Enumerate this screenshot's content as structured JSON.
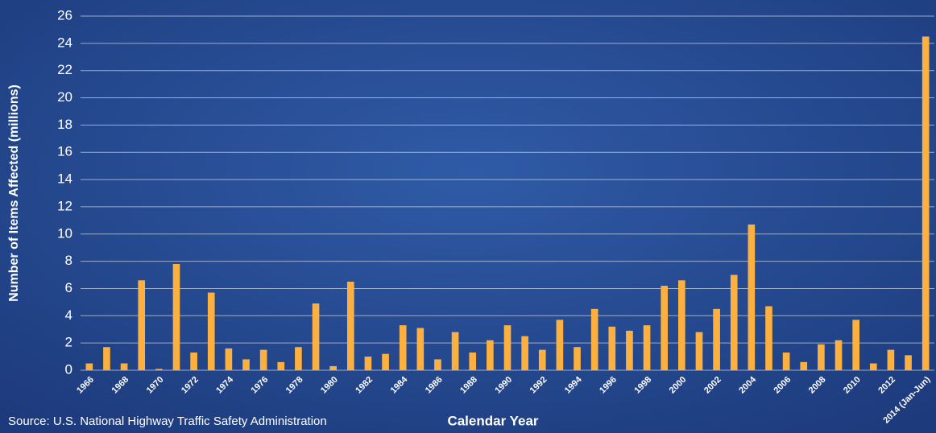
{
  "chart_data": {
    "type": "bar",
    "y_label": "Number of Items Affected (millions)",
    "x_label": "Calendar Year",
    "source": "Source: U.S. National Highway Traffic Safety Administration",
    "categories": [
      "1966",
      null,
      "1968",
      null,
      "1970",
      null,
      "1972",
      null,
      "1974",
      null,
      "1976",
      null,
      "1978",
      null,
      "1980",
      null,
      "1982",
      null,
      "1984",
      null,
      "1986",
      null,
      "1988",
      null,
      "1990",
      null,
      "1992",
      null,
      "1994",
      null,
      "1996",
      null,
      "1998",
      null,
      "2000",
      null,
      "2002",
      null,
      "2004",
      null,
      "2006",
      null,
      "2008",
      null,
      "2010",
      null,
      "2012",
      null,
      "2014 (Jan-Jun)"
    ],
    "values": [
      0.5,
      1.7,
      0.5,
      6.6,
      0.1,
      7.8,
      1.3,
      5.7,
      1.6,
      0.8,
      1.5,
      0.6,
      1.7,
      4.9,
      0.3,
      6.5,
      1.0,
      1.2,
      3.3,
      3.1,
      0.8,
      2.8,
      1.3,
      2.2,
      3.3,
      2.5,
      1.5,
      3.7,
      1.7,
      4.5,
      3.2,
      2.9,
      3.3,
      6.2,
      6.6,
      2.8,
      4.5,
      7.0,
      10.7,
      4.7,
      1.3,
      0.6,
      1.9,
      2.2,
      3.7,
      0.5,
      1.5,
      1.1,
      24.5
    ],
    "color": "#fbb040",
    "ylim": [
      0,
      26
    ],
    "yticks": [
      0,
      2,
      4,
      6,
      8,
      10,
      12,
      14,
      16,
      18,
      20,
      22,
      24,
      26
    ],
    "grid": true
  }
}
